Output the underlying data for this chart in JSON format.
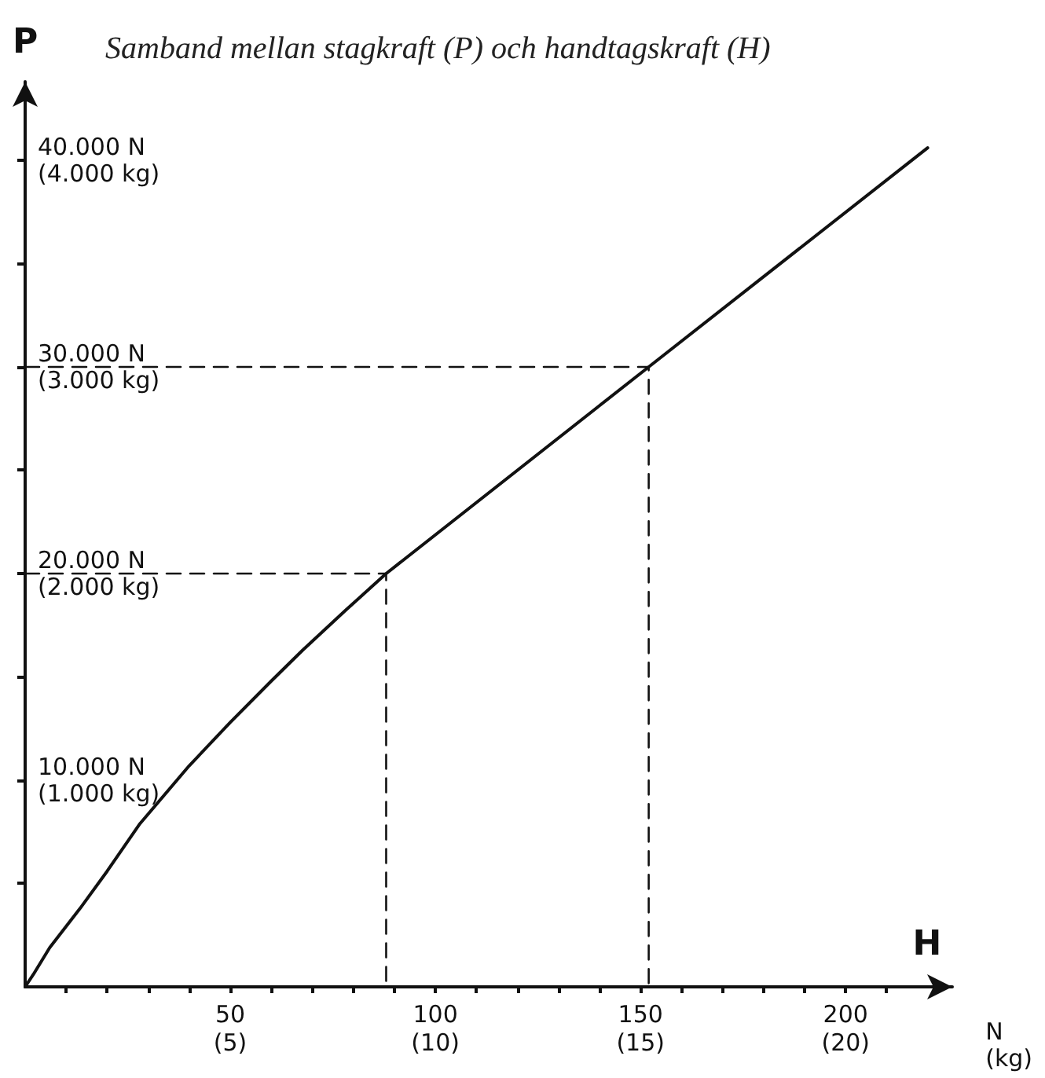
{
  "chart_data": {
    "type": "line",
    "title": "Samband mellan stagkraft (P) och handtagskraft (H)",
    "xlabel": "H",
    "ylabel": "P",
    "annotations": [
      "N\n(kg)"
    ],
    "x": [
      0,
      2,
      6,
      13.4,
      20,
      28,
      40,
      50,
      60,
      67.7,
      78,
      88,
      152,
      220
    ],
    "series": [
      {
        "color": "#111111",
        "values": [
          0,
          600,
          1900,
          3800,
          5600,
          7900,
          10700,
          12800,
          14800,
          16300,
          18200,
          20000,
          30000,
          40600
        ]
      },
      {
        "type": "line",
        "line_style": "dashed",
        "color": "#111111",
        "x": [
          0,
          88,
          88
        ],
        "values": [
          20000,
          20000,
          0
        ]
      },
      {
        "type": "line",
        "line_style": "dashed",
        "color": "#111111",
        "x": [
          0,
          152,
          152
        ],
        "values": [
          30000,
          30000,
          0
        ]
      }
    ],
    "xlim": [
      0,
      226
    ],
    "ylim": [
      0,
      43800
    ],
    "xticks": [
      {
        "value": 10,
        "label": null
      },
      {
        "value": 20,
        "label": null
      },
      {
        "value": 30,
        "label": null
      },
      {
        "value": 40,
        "label": null
      },
      50,
      {
        "value": 60,
        "label": null
      },
      {
        "value": 70,
        "label": null
      },
      {
        "value": 80,
        "label": null
      },
      {
        "value": 90,
        "label": null
      },
      100,
      {
        "value": 110,
        "label": null
      },
      {
        "value": 120,
        "label": null
      },
      {
        "value": 130,
        "label": null
      },
      {
        "value": 140,
        "label": null
      },
      150,
      {
        "value": 160,
        "label": null
      },
      {
        "value": 170,
        "label": null
      },
      {
        "value": 180,
        "label": null
      },
      {
        "value": 190,
        "label": null
      },
      200,
      {
        "value": 210,
        "label": null
      }
    ],
    "x2lim": [
      0,
      22.6
    ],
    "x2ticks": [
      {
        "value": 5,
        "label": "(5)"
      },
      {
        "value": 10,
        "label": "(10)"
      },
      {
        "value": 15,
        "label": "(15)"
      },
      {
        "value": 20,
        "label": "(20)"
      }
    ],
    "yticks": [
      {
        "value": 5000,
        "label": null
      },
      {
        "value": 10000,
        "label": "10.000 N"
      },
      {
        "value": 15000,
        "label": null
      },
      {
        "value": 20000,
        "label": "20.000 N"
      },
      {
        "value": 25000,
        "label": null
      },
      {
        "value": 30000,
        "label": "30.000 N"
      },
      {
        "value": 35000,
        "label": null
      },
      {
        "value": 40000,
        "label": "40.000 N"
      }
    ],
    "y2lim": [
      0,
      4380
    ],
    "y2ticks": [
      {
        "value": 1000,
        "label": "(1.000 kg)"
      },
      {
        "value": 2000,
        "label": "(2.000 kg)"
      },
      {
        "value": 3000,
        "label": "(3.000 kg)"
      },
      {
        "value": 4000,
        "label": "(4.000 kg)"
      }
    ],
    "grid": false,
    "marker": "none",
    "line_style": "solid"
  }
}
